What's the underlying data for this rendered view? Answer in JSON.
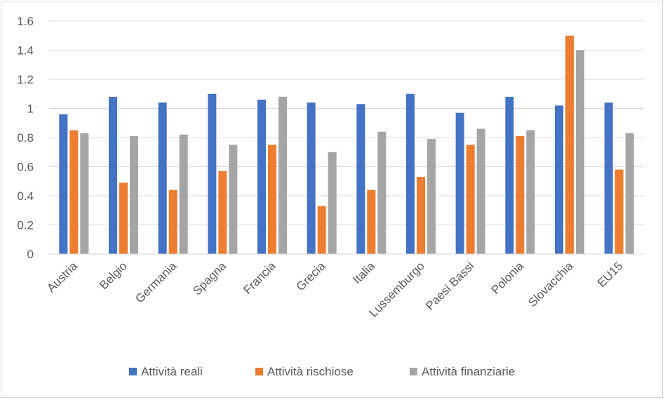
{
  "chart_data": {
    "type": "bar",
    "title": "",
    "xlabel": "",
    "ylabel": "",
    "ylim": [
      0,
      1.6
    ],
    "yticks": [
      "0",
      "0.2",
      "0.4",
      "0.6",
      "0.8",
      "1",
      "1.2",
      "1.4",
      "1.6"
    ],
    "grid": true,
    "legend_position": "bottom",
    "categories": [
      "Austria",
      "Belgio",
      "Germania",
      "Spagna",
      "Francia",
      "Grecia",
      "Italia",
      "Lussemburgo",
      "Paesi Bassi",
      "Polonia",
      "Slovacchia",
      "EU15"
    ],
    "series": [
      {
        "name": "Attività reali",
        "color": "#4472C4",
        "values": [
          0.96,
          1.08,
          1.04,
          1.1,
          1.06,
          1.04,
          1.03,
          1.1,
          0.97,
          1.08,
          1.02,
          1.04
        ]
      },
      {
        "name": "Attività rischiose",
        "color": "#ED7D31",
        "values": [
          0.85,
          0.49,
          0.44,
          0.57,
          0.75,
          0.33,
          0.44,
          0.53,
          0.75,
          0.81,
          1.5,
          0.58
        ]
      },
      {
        "name": "Attività finanziarie",
        "color": "#A5A5A5",
        "values": [
          0.83,
          0.81,
          0.82,
          0.75,
          1.08,
          0.7,
          0.84,
          0.79,
          0.86,
          0.85,
          1.4,
          0.83
        ]
      }
    ]
  }
}
